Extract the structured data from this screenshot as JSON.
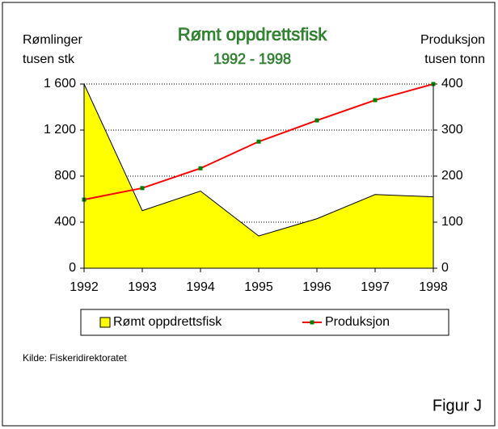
{
  "chart_data": {
    "type": "area-line",
    "title": "Rømt oppdrettsfisk",
    "subtitle": "1992  -  1998",
    "ylabel": [
      "Rømlinger",
      "tusen stk"
    ],
    "y2label": [
      "Produksjon",
      "tusen tonn"
    ],
    "categories": [
      "1992",
      "1993",
      "1994",
      "1995",
      "1996",
      "1997",
      "1998"
    ],
    "series": [
      {
        "name": "Rømt oppdrettsfisk",
        "type": "area",
        "color": "#ffff00",
        "values": [
          1600,
          500,
          670,
          280,
          430,
          640,
          620
        ]
      },
      {
        "name": "Produksjon",
        "type": "line",
        "color": "#ff0000",
        "marker_color": "#008000",
        "axis": "y2",
        "values": [
          149,
          174,
          217,
          275,
          321,
          365,
          400
        ]
      }
    ],
    "ylim": [
      0,
      1600
    ],
    "yticks": [
      0,
      400,
      800,
      {
        "value": 1200,
        "label": "1 200"
      },
      {
        "value": 1600,
        "label": "1 600"
      }
    ],
    "y2lim": [
      0,
      400
    ],
    "y2ticks": [
      0,
      100,
      200,
      300,
      400
    ],
    "grid": true,
    "legend": "bottom",
    "source": "Kilde: Fiskeridirektoratet",
    "annotation": "Figur J"
  }
}
